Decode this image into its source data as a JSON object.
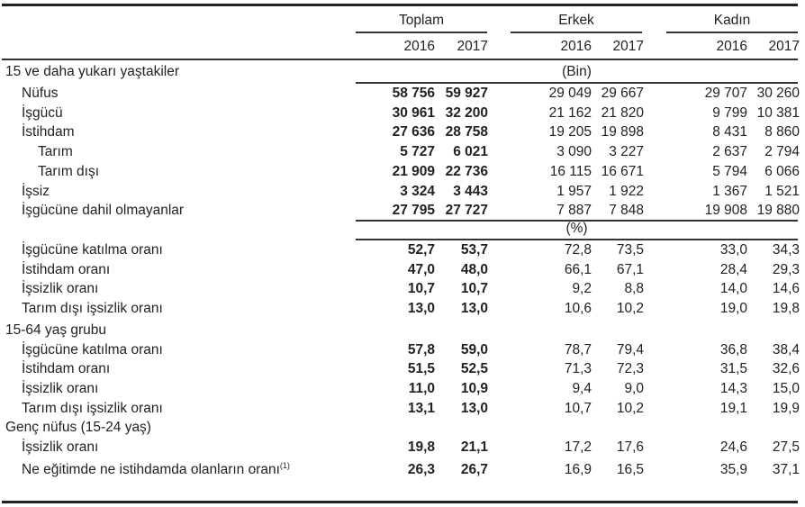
{
  "table": {
    "groups": [
      "Toplam",
      "Erkek",
      "Kadın"
    ],
    "years": [
      "2016",
      "2017",
      "2016",
      "2017",
      "2016",
      "2017"
    ],
    "units": {
      "thousands": "(Bin)",
      "percent": "(%)"
    },
    "sections": [
      {
        "title": "15 ve daha yukarı yaştakiler",
        "rows": [
          {
            "label": "Nüfus",
            "values": [
              "58 756",
              "59 927",
              "29 049",
              "29 667",
              "29 707",
              "30 260"
            ]
          },
          {
            "label": "İşgücü",
            "values": [
              "30 961",
              "32 200",
              "21 162",
              "21 820",
              "9 799",
              "10 381"
            ]
          },
          {
            "label": "İstihdam",
            "values": [
              "27 636",
              "28 758",
              "19 205",
              "19 898",
              "8 431",
              "8 860"
            ]
          },
          {
            "label": "Tarım",
            "values": [
              "5 727",
              "6 021",
              "3 090",
              "3 227",
              "2 637",
              "2 794"
            ]
          },
          {
            "label": "Tarım dışı",
            "values": [
              "21 909",
              "22 736",
              "16 115",
              "16 671",
              "5 794",
              "6 066"
            ]
          },
          {
            "label": "İşsiz",
            "values": [
              "3 324",
              "3 443",
              "1 957",
              "1 922",
              "1 367",
              "1 521"
            ]
          },
          {
            "label": "İşgücüne dahil olmayanlar",
            "values": [
              "27 795",
              "27 727",
              "7 887",
              "7 848",
              "19 908",
              "19 880"
            ]
          },
          {
            "label": "İşgücüne katılma oranı",
            "values": [
              "52,7",
              "53,7",
              "72,8",
              "73,5",
              "33,0",
              "34,3"
            ]
          },
          {
            "label": "İstihdam oranı",
            "values": [
              "47,0",
              "48,0",
              "66,1",
              "67,1",
              "28,4",
              "29,3"
            ]
          },
          {
            "label": "İşsizlik oranı",
            "values": [
              "10,7",
              "10,7",
              "9,2",
              "8,8",
              "14,0",
              "14,6"
            ]
          },
          {
            "label": "Tarım dışı işsizlik oranı",
            "values": [
              "13,0",
              "13,0",
              "10,6",
              "10,2",
              "19,0",
              "19,8"
            ]
          }
        ]
      },
      {
        "title": "15-64 yaş grubu",
        "rows": [
          {
            "label": "İşgücüne katılma oranı",
            "values": [
              "57,8",
              "59,0",
              "78,7",
              "79,4",
              "36,8",
              "38,4"
            ]
          },
          {
            "label": "İstihdam oranı",
            "values": [
              "51,5",
              "52,5",
              "71,3",
              "72,3",
              "31,5",
              "32,6"
            ]
          },
          {
            "label": "İşsizlik oranı",
            "values": [
              "11,0",
              "10,9",
              "9,4",
              "9,0",
              "14,3",
              "15,0"
            ]
          },
          {
            "label": "Tarım dışı işsizlik oranı",
            "values": [
              "13,1",
              "13,0",
              "10,7",
              "10,2",
              "19,1",
              "19,9"
            ]
          }
        ]
      },
      {
        "title": "Genç nüfus (15-24 yaş)",
        "rows": [
          {
            "label": "İşsizlik oranı",
            "values": [
              "19,8",
              "21,1",
              "17,2",
              "17,6",
              "24,6",
              "27,5"
            ]
          },
          {
            "label": "Ne eğitimde ne istihdamda olanların oranı",
            "footnote": "(1)",
            "values": [
              "26,3",
              "26,7",
              "16,9",
              "16,5",
              "35,9",
              "37,1"
            ]
          }
        ]
      }
    ]
  }
}
